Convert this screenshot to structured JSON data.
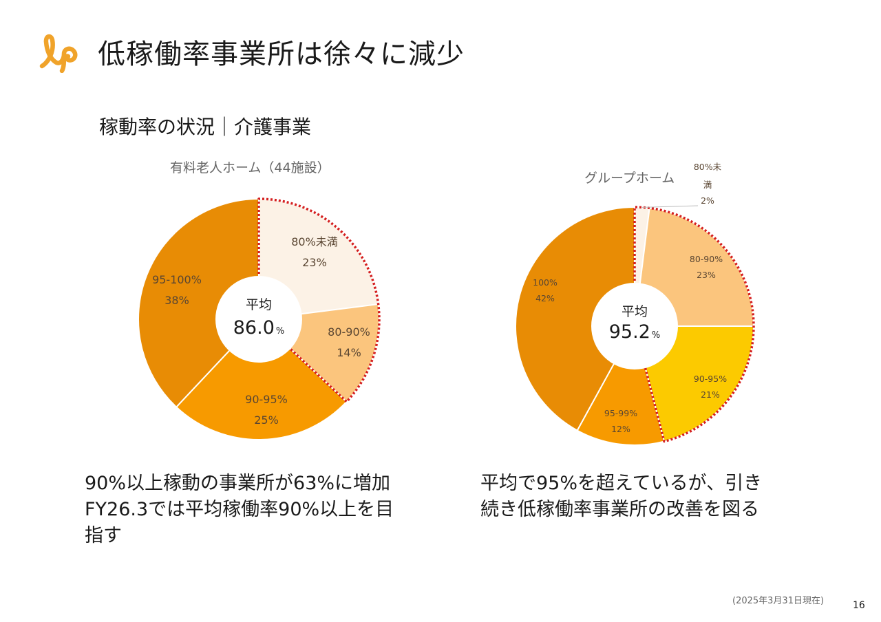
{
  "header": {
    "title": "低稼働率事業所は徐々に減少",
    "logo_icon": "lp-logo-icon"
  },
  "section_title": "稼動率の状況｜介護事業",
  "colors": {
    "dark_orange": "#E88C05",
    "orange": "#F79A00",
    "light_orange": "#FBC57D",
    "cream": "#FCF2E6",
    "yellow": "#FCCA00",
    "highlight_border": "#D41F1F",
    "logo": "#F0A32A"
  },
  "chart_data": [
    {
      "type": "pie",
      "title": "有料老人ホーム（44施設）",
      "center_label": "平均",
      "center_value": "86.0",
      "center_unit": "%",
      "categories": [
        "80%未満",
        "80-90%",
        "90-95%",
        "95-100%"
      ],
      "values": [
        23,
        14,
        25,
        38
      ],
      "value_labels": [
        "23%",
        "14%",
        "25%",
        "38%"
      ],
      "colors": [
        "#FCF2E6",
        "#FBC57D",
        "#F79A00",
        "#E88C05"
      ],
      "highlighted": [
        "80%未満",
        "80-90%"
      ],
      "start_angle": "12 o'clock",
      "direction": "clockwise"
    },
    {
      "type": "pie",
      "title": "グループホーム",
      "center_label": "平均",
      "center_value": "95.2",
      "center_unit": "%",
      "categories": [
        "80%未満",
        "80-90%",
        "90-95%",
        "95-99%",
        "100%"
      ],
      "values": [
        2,
        23,
        21,
        12,
        42
      ],
      "value_labels": [
        "2%",
        "23%",
        "21%",
        "12%",
        "42%"
      ],
      "colors": [
        "#FCF2E6",
        "#FBC57D",
        "#FCCA00",
        "#F79A00",
        "#E88C05"
      ],
      "highlighted": [
        "80%未満",
        "80-90%",
        "90-95%"
      ],
      "start_angle": "12 o'clock",
      "direction": "clockwise"
    }
  ],
  "notes": {
    "left": [
      "90%以上稼動の事業所が63%に増加",
      "FY26.3では平均稼働率90%以上を目",
      "指す"
    ],
    "right": [
      "平均で95%を超えているが、引き",
      "続き低稼働率事業所の改善を図る"
    ]
  },
  "footnote": "(2025年3月31日現在)",
  "page_number": "16"
}
